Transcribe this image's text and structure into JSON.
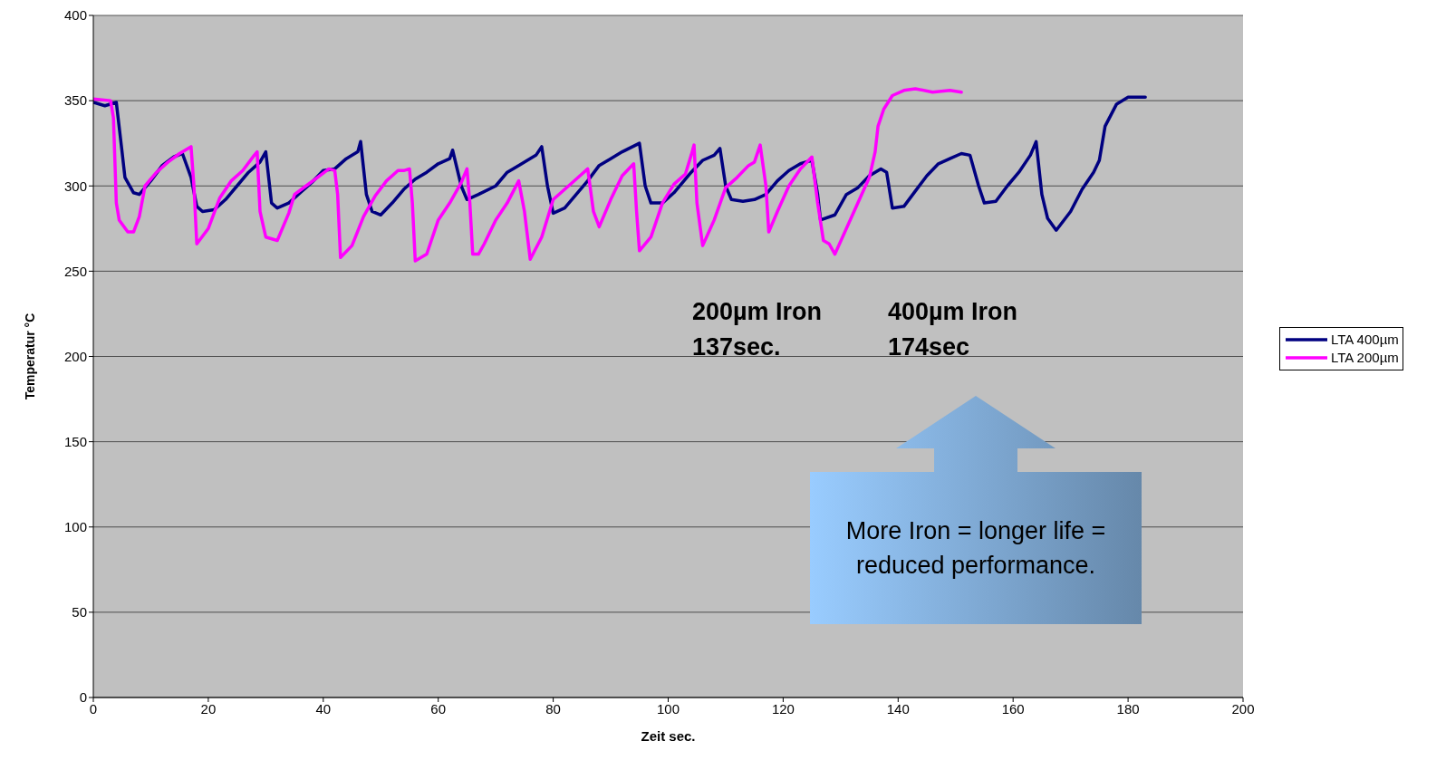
{
  "chart_data": {
    "type": "line",
    "xlabel": "Zeit  sec.",
    "ylabel": "Temperatur °C",
    "xlim": [
      0,
      200
    ],
    "xticks": [
      0,
      20,
      40,
      60,
      80,
      100,
      120,
      140,
      160,
      180,
      200
    ],
    "ylim": [
      0,
      400
    ],
    "yticks": [
      0,
      50,
      100,
      150,
      200,
      250,
      300,
      350,
      400
    ],
    "grid": "y",
    "legend": "right",
    "marker": "none",
    "line_style": "solid",
    "series": [
      {
        "name": "LTA 400µm",
        "color": "#000080",
        "x": [
          0,
          2,
          4,
          5,
          5.5,
          7,
          8,
          10,
          12,
          14,
          15.5,
          17,
          18,
          19,
          21,
          23,
          25,
          27,
          29,
          30,
          31,
          32,
          34,
          36,
          38,
          40,
          42,
          44,
          46,
          46.5,
          47.5,
          48.5,
          50,
          52,
          54,
          56,
          58,
          60,
          62,
          62.5,
          64,
          65,
          67,
          70,
          72,
          74,
          77,
          78,
          79,
          80,
          82,
          84,
          86,
          88,
          90,
          92,
          95,
          96,
          97,
          99,
          101,
          104,
          106,
          108,
          109,
          110,
          111,
          113,
          115,
          117,
          119,
          121,
          123,
          125,
          126,
          126.5,
          129,
          131,
          133,
          135,
          137,
          138,
          139,
          141,
          143,
          145,
          147,
          149,
          151,
          152.5,
          154,
          155,
          157,
          159,
          161,
          163,
          164,
          165,
          166,
          167.5,
          170,
          172,
          174,
          175,
          176,
          178,
          180,
          183
        ],
        "values": [
          349,
          347,
          349,
          320,
          305,
          296,
          295,
          303,
          312,
          317,
          319,
          305,
          288,
          285,
          286,
          292,
          300,
          308,
          314,
          320,
          290,
          287,
          290,
          296,
          302,
          309,
          310,
          316,
          320,
          326,
          295,
          285,
          283,
          290,
          298,
          304,
          308,
          313,
          316,
          321,
          300,
          292,
          295,
          300,
          308,
          312,
          318,
          323,
          300,
          284,
          287,
          295,
          303,
          312,
          316,
          320,
          325,
          300,
          290,
          290,
          296,
          308,
          315,
          318,
          322,
          300,
          292,
          291,
          292,
          295,
          303,
          309,
          313,
          315,
          295,
          280,
          283,
          295,
          299,
          306,
          310,
          308,
          287,
          288,
          297,
          306,
          313,
          316,
          319,
          318,
          300,
          290,
          291,
          300,
          308,
          318,
          326,
          295,
          281,
          274,
          285,
          298,
          308,
          315,
          335,
          348,
          352,
          352
        ]
      },
      {
        "name": "LTA 200µm",
        "color": "#ff00ff",
        "x": [
          0,
          3,
          3.5,
          4,
          4.5,
          6,
          7,
          8,
          9,
          11,
          13,
          15,
          17,
          17.5,
          18,
          20,
          22,
          24,
          26,
          28,
          28.5,
          29,
          30,
          32,
          34,
          35,
          37,
          39,
          41,
          42,
          42.5,
          43,
          45,
          47,
          49,
          51,
          53,
          54,
          55,
          55.5,
          56,
          58,
          60,
          62,
          64,
          65,
          65.5,
          66,
          67,
          68,
          70,
          72,
          74,
          75,
          76,
          78,
          80,
          82,
          84,
          86,
          87,
          88,
          90,
          92,
          94,
          94.5,
          95,
          97,
          99,
          101,
          103,
          104,
          104.5,
          105,
          106,
          108,
          110,
          112,
          114,
          115,
          116,
          117,
          117.5,
          119,
          121,
          123,
          125,
          126,
          127,
          128,
          129,
          131,
          133,
          135,
          136,
          136.5,
          137.5,
          139,
          141,
          143,
          146,
          149,
          151
        ],
        "values": [
          351,
          350,
          340,
          290,
          280,
          273,
          273,
          282,
          300,
          308,
          314,
          319,
          323,
          300,
          266,
          275,
          293,
          303,
          309,
          318,
          320,
          285,
          270,
          268,
          284,
          295,
          300,
          305,
          310,
          309,
          295,
          258,
          265,
          282,
          294,
          303,
          309,
          309,
          310,
          290,
          256,
          260,
          280,
          290,
          302,
          310,
          290,
          260,
          260,
          266,
          280,
          290,
          303,
          285,
          257,
          270,
          292,
          298,
          304,
          310,
          285,
          276,
          292,
          306,
          313,
          285,
          262,
          270,
          290,
          301,
          307,
          318,
          324,
          290,
          265,
          280,
          299,
          305,
          312,
          314,
          324,
          300,
          273,
          285,
          300,
          310,
          317,
          290,
          268,
          266,
          260,
          275,
          290,
          305,
          320,
          335,
          345,
          353,
          356,
          357,
          355,
          356,
          355
        ]
      }
    ],
    "annotations": [
      "200µm Iron\n137sec.",
      "400µm Iron\n174sec",
      "More Iron = longer life = reduced performance."
    ]
  }
}
